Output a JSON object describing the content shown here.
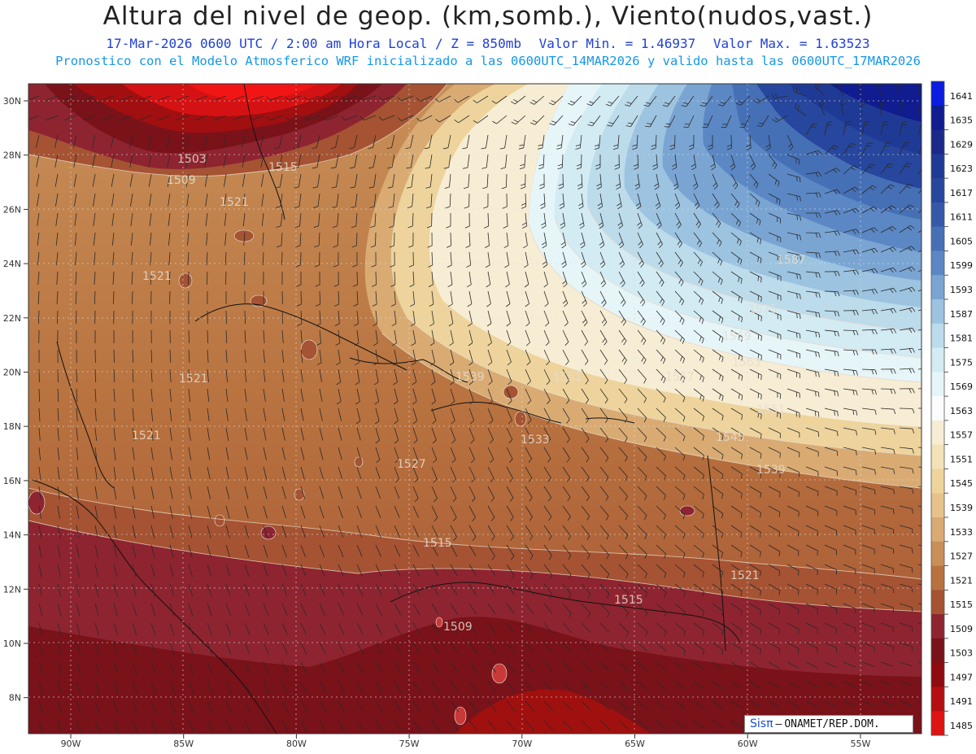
{
  "title": "Altura del nivel de geop. (km,somb.), Viento(nudos,vast.)",
  "subtitle": {
    "time": "17-Mar-2026  0600 UTC / 2:00 am Hora Local / Z = 850mb",
    "min": "Valor Min. = 1.46937",
    "max": "Valor Max. = 1.63523"
  },
  "model_line": "Pronostico con el Modelo Atmosferico WRF inicializado a las 0600UTC_14MAR2026 y valido hasta las  0600UTC_17MAR2026",
  "lat_labels": [
    "30N",
    "28N",
    "26N",
    "24N",
    "22N",
    "20N",
    "18N",
    "16N",
    "14N",
    "12N",
    "10N",
    "8N"
  ],
  "lon_labels": [
    "90W",
    "85W",
    "80W",
    "75W",
    "70W",
    "65W",
    "60W",
    "55W"
  ],
  "colorbar": {
    "labels": [
      "1641",
      "1635",
      "1629",
      "1623",
      "1617",
      "1611",
      "1605",
      "1599",
      "1593",
      "1587",
      "1581",
      "1575",
      "1569",
      "1563",
      "1557",
      "1551",
      "1545",
      "1539",
      "1533",
      "1527",
      "1521",
      "1515",
      "1509",
      "1503",
      "1497",
      "1491",
      "1485"
    ],
    "colors": [
      "#0a1de0",
      "#101c8f",
      "#1b2a8a",
      "#1f3a95",
      "#27469d",
      "#3558a8",
      "#4670b6",
      "#5b88c4",
      "#7aa5d3",
      "#9cc3e0",
      "#bcdbeb",
      "#d3ebf3",
      "#e6f5f8",
      "#fbfcfd",
      "#f7edd4",
      "#f3e2b8",
      "#eed49c",
      "#e6c38a",
      "#d9ab73",
      "#c88f58",
      "#b8723f",
      "#a55333",
      "#8e2430",
      "#7a1219",
      "#900b0f",
      "#b40f10",
      "#e01313"
    ]
  },
  "contour_labels": [
    "1503",
    "1509",
    "1515",
    "1521",
    "1521",
    "1521",
    "1521",
    "1527",
    "1533",
    "1539",
    "1545",
    "1551",
    "1551",
    "1557",
    "1563",
    "1569",
    "1575",
    "1587",
    "1509",
    "1515",
    "1515",
    "1521",
    "1539"
  ],
  "credit": {
    "brand": "Sisπ",
    "org": "ONAMET/REP.DOM."
  },
  "colors": {
    "title": "#222222",
    "time_line": "#1f3fd8",
    "model_line": "#1597e8"
  }
}
